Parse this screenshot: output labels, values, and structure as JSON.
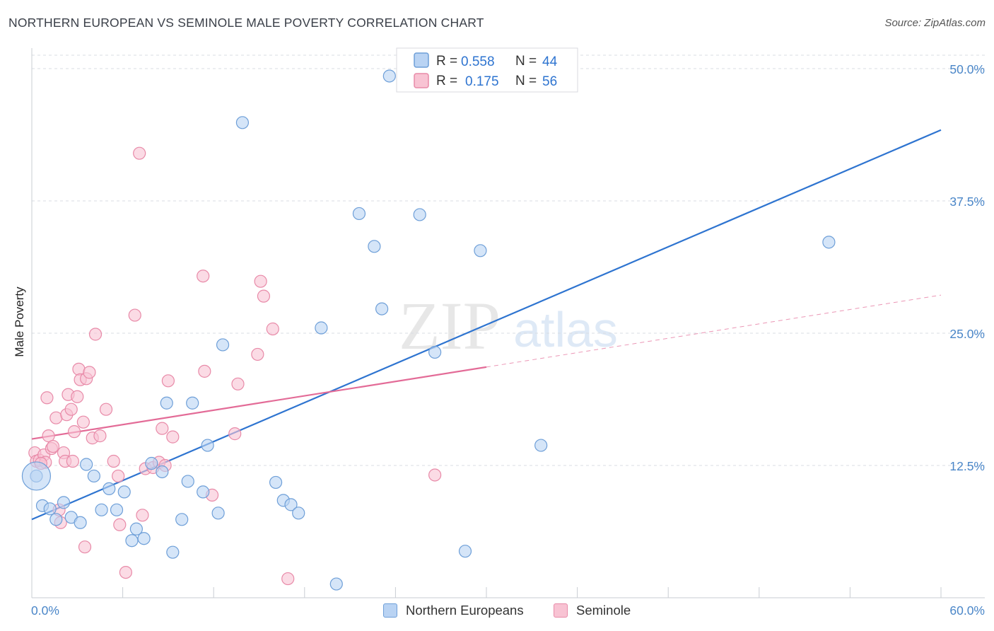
{
  "title": "NORTHERN EUROPEAN VS SEMINOLE MALE POVERTY CORRELATION CHART",
  "source": "Source: ZipAtlas.com",
  "watermark": {
    "zip": "ZIP",
    "atlas": "atlas"
  },
  "legend_top": [
    {
      "r_label": "R =",
      "r_value": "0.558",
      "n_label": "N =",
      "n_value": "44"
    },
    {
      "r_label": "R =",
      "r_value": "0.175",
      "n_label": "N =",
      "n_value": "56"
    }
  ],
  "chart_data": {
    "type": "scatter",
    "title": "NORTHERN EUROPEAN VS SEMINOLE MALE POVERTY CORRELATION CHART",
    "xlabel": "",
    "ylabel": "Male Poverty",
    "xlim": [
      0,
      60
    ],
    "ylim": [
      0,
      50
    ],
    "x_tick_labels": [
      "0.0%",
      "60.0%"
    ],
    "y_ticks": [
      12.5,
      25.0,
      37.5,
      50.0
    ],
    "y_tick_labels": [
      "12.5%",
      "25.0%",
      "37.5%",
      "50.0%"
    ],
    "grid": true,
    "legend_position": "top-center",
    "colors": {
      "blue_fill": "#b9d3f3",
      "blue_stroke": "#6e9fd8",
      "blue_line": "#2e74d0",
      "pink_fill": "#f8c3d3",
      "pink_stroke": "#e88aa8",
      "pink_line": "#e36b97",
      "grid": "#d9dde3",
      "axis_text": "#4a86c8"
    },
    "series": [
      {
        "name": "Northern Europeans",
        "color": "#6e9fd8",
        "trend": {
          "x": [
            0,
            60
          ],
          "y": [
            7.4,
            44.2
          ],
          "style": "solid"
        },
        "points": [
          [
            0.3,
            11.5
          ],
          [
            0.7,
            8.7
          ],
          [
            1.2,
            8.4
          ],
          [
            1.6,
            7.4
          ],
          [
            2.1,
            9.0
          ],
          [
            2.6,
            7.6
          ],
          [
            3.2,
            7.1
          ],
          [
            3.6,
            12.6
          ],
          [
            4.1,
            11.5
          ],
          [
            4.6,
            8.3
          ],
          [
            5.1,
            10.3
          ],
          [
            5.6,
            8.3
          ],
          [
            6.1,
            10.0
          ],
          [
            6.6,
            5.4
          ],
          [
            6.9,
            6.5
          ],
          [
            7.4,
            5.6
          ],
          [
            7.9,
            12.7
          ],
          [
            8.6,
            11.9
          ],
          [
            8.9,
            18.4
          ],
          [
            9.3,
            4.3
          ],
          [
            9.9,
            7.4
          ],
          [
            10.3,
            11.0
          ],
          [
            10.6,
            18.4
          ],
          [
            11.3,
            10.0
          ],
          [
            11.6,
            14.4
          ],
          [
            12.3,
            8.0
          ],
          [
            12.6,
            23.9
          ],
          [
            13.9,
            44.9
          ],
          [
            16.1,
            10.9
          ],
          [
            16.6,
            9.2
          ],
          [
            17.1,
            8.8
          ],
          [
            17.6,
            8.0
          ],
          [
            19.1,
            25.5
          ],
          [
            20.1,
            1.3
          ],
          [
            21.6,
            36.3
          ],
          [
            22.6,
            33.2
          ],
          [
            23.1,
            27.3
          ],
          [
            23.6,
            49.3
          ],
          [
            25.6,
            36.2
          ],
          [
            26.6,
            23.2
          ],
          [
            28.6,
            4.4
          ],
          [
            29.6,
            32.8
          ],
          [
            33.6,
            14.4
          ],
          [
            52.6,
            33.6
          ]
        ]
      },
      {
        "name": "Seminole",
        "color": "#e88aa8",
        "trend": {
          "x": [
            0,
            60
          ],
          "y": [
            15.0,
            28.6
          ],
          "solid_until_x": 30,
          "style": "solid-then-dashed"
        },
        "points": [
          [
            0.2,
            13.7
          ],
          [
            0.3,
            12.9
          ],
          [
            0.5,
            13.0
          ],
          [
            0.8,
            13.5
          ],
          [
            1.0,
            18.9
          ],
          [
            1.1,
            15.3
          ],
          [
            1.3,
            14.1
          ],
          [
            1.6,
            17.0
          ],
          [
            1.8,
            8.3
          ],
          [
            1.9,
            7.1
          ],
          [
            2.1,
            13.7
          ],
          [
            2.2,
            12.9
          ],
          [
            2.3,
            17.3
          ],
          [
            2.4,
            19.2
          ],
          [
            2.6,
            17.8
          ],
          [
            2.7,
            12.9
          ],
          [
            2.8,
            15.7
          ],
          [
            3.0,
            19.0
          ],
          [
            3.1,
            21.6
          ],
          [
            3.2,
            20.6
          ],
          [
            3.4,
            16.6
          ],
          [
            3.5,
            4.8
          ],
          [
            3.6,
            20.7
          ],
          [
            3.8,
            21.3
          ],
          [
            4.0,
            15.1
          ],
          [
            4.2,
            24.9
          ],
          [
            4.5,
            15.3
          ],
          [
            4.9,
            17.8
          ],
          [
            5.4,
            12.9
          ],
          [
            5.7,
            11.5
          ],
          [
            5.8,
            6.9
          ],
          [
            6.2,
            2.4
          ],
          [
            6.8,
            26.7
          ],
          [
            7.1,
            42.0
          ],
          [
            7.3,
            7.8
          ],
          [
            7.5,
            12.2
          ],
          [
            8.0,
            12.3
          ],
          [
            8.4,
            12.8
          ],
          [
            8.6,
            16.0
          ],
          [
            8.8,
            12.5
          ],
          [
            9.0,
            20.5
          ],
          [
            9.3,
            15.2
          ],
          [
            11.3,
            30.4
          ],
          [
            11.4,
            21.4
          ],
          [
            11.9,
            9.7
          ],
          [
            13.6,
            20.2
          ],
          [
            13.4,
            15.5
          ],
          [
            14.9,
            23.0
          ],
          [
            15.1,
            29.9
          ],
          [
            15.3,
            28.5
          ],
          [
            15.9,
            25.4
          ],
          [
            16.9,
            1.8
          ],
          [
            26.6,
            11.6
          ],
          [
            1.4,
            14.3
          ],
          [
            0.9,
            12.8
          ],
          [
            0.6,
            12.7
          ]
        ]
      }
    ]
  },
  "legend_bottom": [
    {
      "label": "Northern Europeans"
    },
    {
      "label": "Seminole"
    }
  ]
}
